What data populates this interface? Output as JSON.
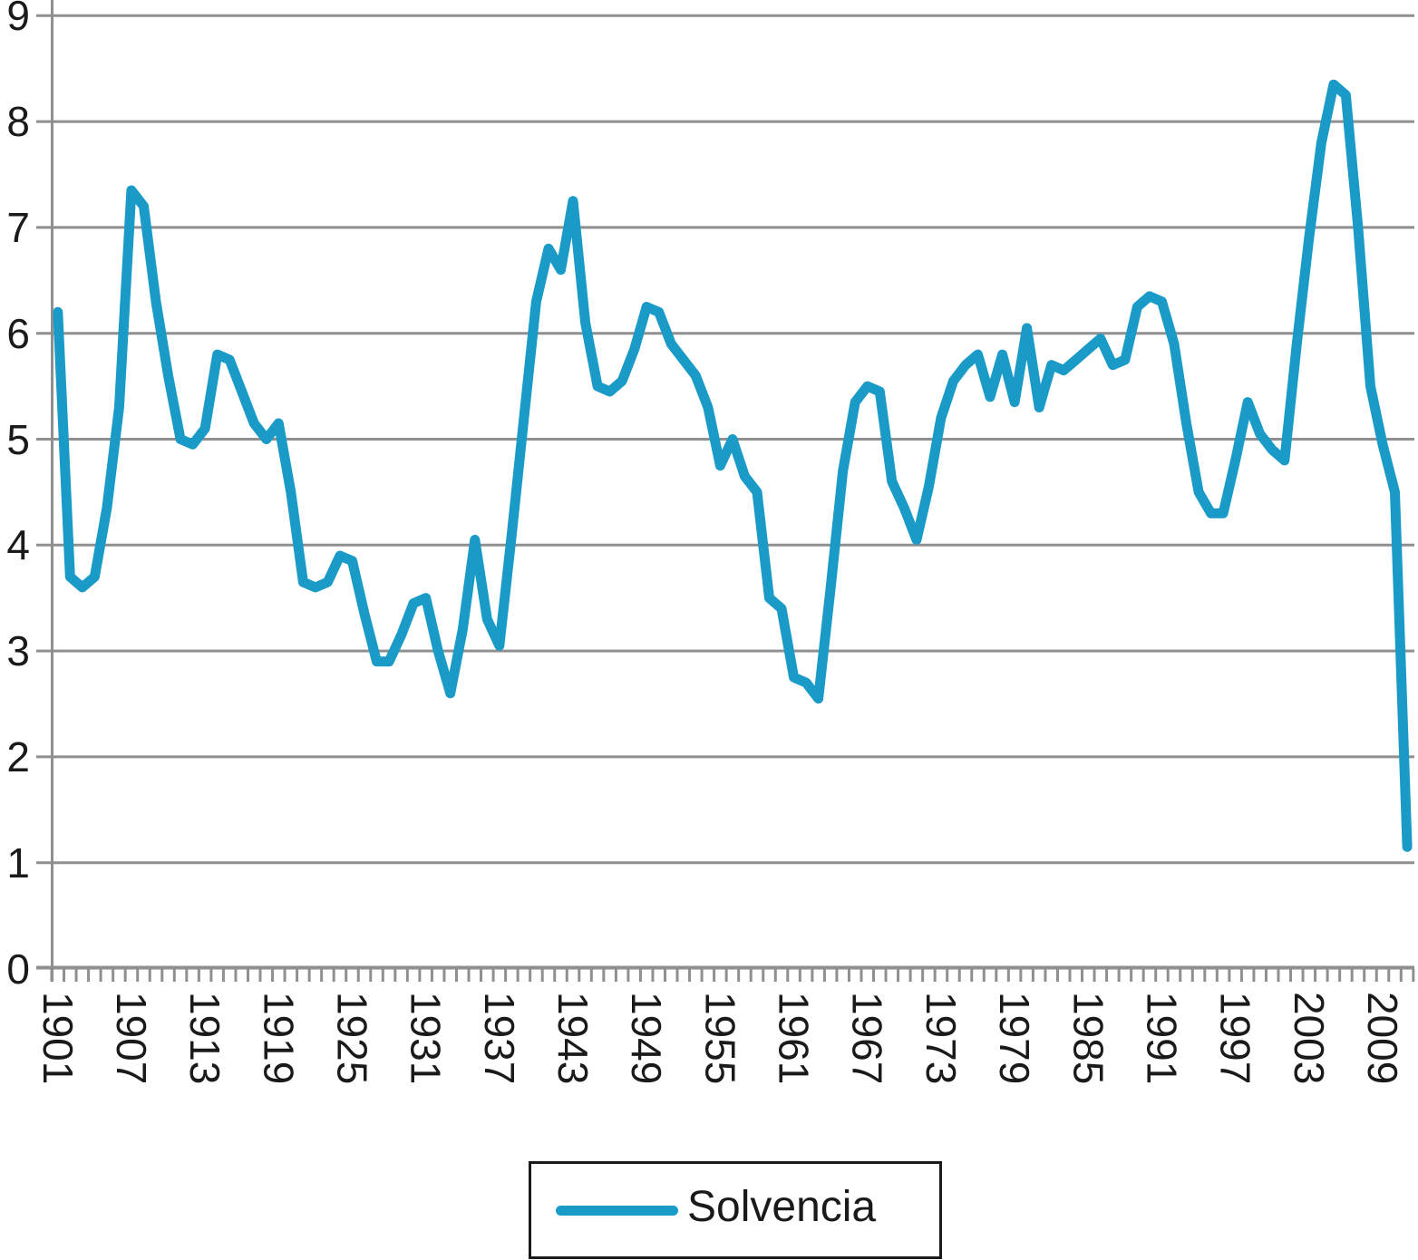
{
  "chart_data": {
    "type": "line",
    "title": "",
    "xlabel": "",
    "ylabel": "",
    "ylim": [
      0,
      9
    ],
    "y_ticks": [
      0,
      1,
      2,
      3,
      4,
      5,
      6,
      7,
      8,
      9
    ],
    "x_tick_labels": [
      "1901",
      "1907",
      "1913",
      "1919",
      "1925",
      "1931",
      "1937",
      "1943",
      "1949",
      "1955",
      "1961",
      "1967",
      "1973",
      "1979",
      "1985",
      "1991",
      "1997",
      "2003",
      "2009"
    ],
    "grid": true,
    "legend_position": "bottom",
    "series": [
      {
        "name": "Solvencia",
        "color": "#1a9bc7",
        "years": [
          1901,
          1902,
          1903,
          1904,
          1905,
          1906,
          1907,
          1908,
          1909,
          1910,
          1911,
          1912,
          1913,
          1914,
          1915,
          1916,
          1917,
          1918,
          1919,
          1920,
          1921,
          1922,
          1923,
          1924,
          1925,
          1926,
          1927,
          1928,
          1929,
          1930,
          1931,
          1932,
          1933,
          1934,
          1935,
          1936,
          1937,
          1938,
          1939,
          1940,
          1941,
          1942,
          1943,
          1944,
          1945,
          1946,
          1947,
          1948,
          1949,
          1950,
          1951,
          1952,
          1953,
          1954,
          1955,
          1956,
          1957,
          1958,
          1959,
          1960,
          1961,
          1962,
          1963,
          1964,
          1965,
          1966,
          1967,
          1968,
          1969,
          1970,
          1971,
          1972,
          1973,
          1974,
          1975,
          1976,
          1977,
          1978,
          1979,
          1980,
          1981,
          1982,
          1983,
          1984,
          1985,
          1986,
          1987,
          1988,
          1989,
          1990,
          1991,
          1992,
          1993,
          1994,
          1995,
          1996,
          1997,
          1998,
          1999,
          2000,
          2001,
          2002,
          2003,
          2004,
          2005,
          2006,
          2007,
          2008,
          2009,
          2010,
          2011
        ],
        "values": [
          6.2,
          3.7,
          3.6,
          3.7,
          4.35,
          5.3,
          7.35,
          7.2,
          6.3,
          5.6,
          5.0,
          4.95,
          5.1,
          5.8,
          5.75,
          5.45,
          5.15,
          5.0,
          5.15,
          4.5,
          3.65,
          3.6,
          3.65,
          3.9,
          3.85,
          3.35,
          2.9,
          2.9,
          3.15,
          3.45,
          3.5,
          3.0,
          2.6,
          3.2,
          4.05,
          3.3,
          3.05,
          4.1,
          5.2,
          6.3,
          6.8,
          6.6,
          7.25,
          6.1,
          5.5,
          5.45,
          5.55,
          5.85,
          6.25,
          6.2,
          5.9,
          5.75,
          5.6,
          5.3,
          4.75,
          5.0,
          4.65,
          4.5,
          3.5,
          3.4,
          2.75,
          2.7,
          2.55,
          3.6,
          4.7,
          5.35,
          5.5,
          5.45,
          4.6,
          4.35,
          4.05,
          4.55,
          5.2,
          5.55,
          5.7,
          5.8,
          5.4,
          5.8,
          5.35,
          6.05,
          5.3,
          5.7,
          5.65,
          5.75,
          5.85,
          5.95,
          5.7,
          5.75,
          6.25,
          6.35,
          6.3,
          5.9,
          5.15,
          4.5,
          4.3,
          4.3,
          4.8,
          5.35,
          5.05,
          4.9,
          4.8,
          5.9,
          6.9,
          7.8,
          8.35,
          8.25,
          7.0,
          5.5,
          4.95,
          4.5,
          1.15
        ]
      }
    ]
  },
  "legend": {
    "label": "Solvencia"
  },
  "colors": {
    "line": "#1a9bc7",
    "grid": "#8f8f8f",
    "axis": "#8f8f8f",
    "text": "#1a1a1a",
    "background": "#ffffff"
  }
}
